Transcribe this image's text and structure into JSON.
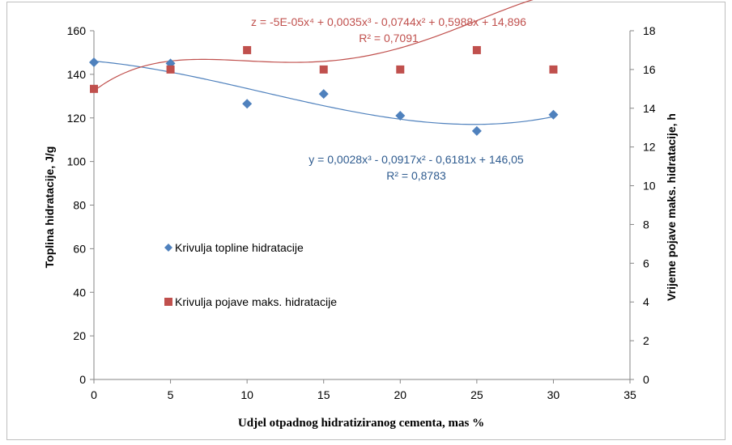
{
  "chart_data": {
    "type": "scatter",
    "xlabel": "Udjel otpadnog hidratiziranog  cementa, mas %",
    "ylabel": "Toplina hidratacije, J/g",
    "y2label": "Vrijeme pojave maks. hidratacije, h",
    "xlim": [
      0,
      35
    ],
    "ylim": [
      0,
      160
    ],
    "y2lim": [
      0,
      18
    ],
    "x_ticks": [
      "0",
      "5",
      "10",
      "15",
      "20",
      "25",
      "30",
      "35"
    ],
    "y_ticks": [
      "0",
      "20",
      "40",
      "60",
      "80",
      "100",
      "120",
      "140",
      "160"
    ],
    "y2_ticks": [
      "0",
      "2",
      "4",
      "6",
      "8",
      "10",
      "12",
      "14",
      "16",
      "18"
    ],
    "grid": false,
    "series": [
      {
        "name": "Krivulja topline hidratacije",
        "axis": "left",
        "marker": "diamond",
        "color": "#4f81bd",
        "x": [
          0,
          5,
          10,
          15,
          20,
          25,
          30
        ],
        "y": [
          145.5,
          145,
          126.5,
          131,
          121,
          114,
          121.5
        ],
        "trendline": {
          "coeffs": [
            146.05,
            -0.6181,
            -0.0917,
            0.0028
          ],
          "equation": "y = 0,0028x³ - 0,0917x² - 0,6181x + 146,05",
          "r2": "R² = 0,8783"
        }
      },
      {
        "name": "Krivulja pojave maks. hidratacije",
        "axis": "right",
        "marker": "square",
        "color": "#c0504d",
        "x": [
          0,
          5,
          10,
          15,
          20,
          25,
          30
        ],
        "y": [
          15,
          16,
          17,
          16,
          16,
          17,
          16
        ],
        "trendline": {
          "coeffs": [
            14.896,
            0.5988,
            -0.0744,
            0.0035,
            -5e-05
          ],
          "equation": "z = -5E-05x⁴ + 0,0035x³ - 0,0744x² + 0,5988x + 14,896",
          "r2": "R² = 0,7091"
        }
      }
    ],
    "legend_placement": "center-left"
  }
}
